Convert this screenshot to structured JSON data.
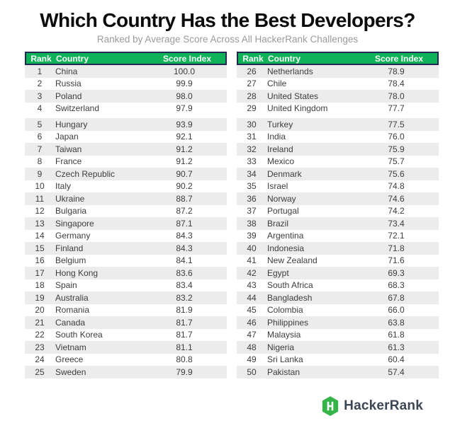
{
  "title": "Which Country Has the Best Developers?",
  "subtitle": "Ranked by Average Score Across All HackerRank Challenges",
  "footer": {
    "brand": "HackerRank",
    "logo_icon": "hackerrank-hexagon-h-icon"
  },
  "colors": {
    "header_green": "#10b259",
    "header_border_navy": "#222a52",
    "row_stripe_gray": "#ececec",
    "logo_green": "#35b448",
    "wordmark_slate": "#3d4654",
    "subtitle_gray": "#9b9b9b",
    "title_black": "#0c0c0c"
  },
  "chart_data": {
    "type": "table",
    "title": "Which Country Has the Best Developers?",
    "subtitle": "Ranked by Average Score Across All HackerRank Challenges",
    "columns": [
      "Rank",
      "Country",
      "Score Index"
    ],
    "layout": "two side-by-side panels, ranks 1-25 left and 26-50 right, small gap after 4th row of each panel",
    "rows": [
      [
        1,
        "China",
        "100.0"
      ],
      [
        2,
        "Russia",
        "99.9"
      ],
      [
        3,
        "Poland",
        "98.0"
      ],
      [
        4,
        "Switzerland",
        "97.9"
      ],
      [
        5,
        "Hungary",
        "93.9"
      ],
      [
        6,
        "Japan",
        "92.1"
      ],
      [
        7,
        "Taiwan",
        "91.2"
      ],
      [
        8,
        "France",
        "91.2"
      ],
      [
        9,
        "Czech Republic",
        "90.7"
      ],
      [
        10,
        "Italy",
        "90.2"
      ],
      [
        11,
        "Ukraine",
        "88.7"
      ],
      [
        12,
        "Bulgaria",
        "87.2"
      ],
      [
        13,
        "Singapore",
        "87.1"
      ],
      [
        14,
        "Germany",
        "84.3"
      ],
      [
        15,
        "Finland",
        "84.3"
      ],
      [
        16,
        "Belgium",
        "84.1"
      ],
      [
        17,
        "Hong Kong",
        "83.6"
      ],
      [
        18,
        "Spain",
        "83.4"
      ],
      [
        19,
        "Australia",
        "83.2"
      ],
      [
        20,
        "Romania",
        "81.9"
      ],
      [
        21,
        "Canada",
        "81.7"
      ],
      [
        22,
        "South Korea",
        "81.7"
      ],
      [
        23,
        "Vietnam",
        "81.1"
      ],
      [
        24,
        "Greece",
        "80.8"
      ],
      [
        25,
        "Sweden",
        "79.9"
      ],
      [
        26,
        "Netherlands",
        "78.9"
      ],
      [
        27,
        "Chile",
        "78.4"
      ],
      [
        28,
        "United States",
        "78.0"
      ],
      [
        29,
        "United Kingdom",
        "77.7"
      ],
      [
        30,
        "Turkey",
        "77.5"
      ],
      [
        31,
        "India",
        "76.0"
      ],
      [
        32,
        "Ireland",
        "75.9"
      ],
      [
        33,
        "Mexico",
        "75.7"
      ],
      [
        34,
        "Denmark",
        "75.6"
      ],
      [
        35,
        "Israel",
        "74.8"
      ],
      [
        36,
        "Norway",
        "74.6"
      ],
      [
        37,
        "Portugal",
        "74.2"
      ],
      [
        38,
        "Brazil",
        "73.4"
      ],
      [
        39,
        "Argentina",
        "72.1"
      ],
      [
        40,
        "Indonesia",
        "71.8"
      ],
      [
        41,
        "New Zealand",
        "71.6"
      ],
      [
        42,
        "Egypt",
        "69.3"
      ],
      [
        43,
        "South Africa",
        "68.3"
      ],
      [
        44,
        "Bangladesh",
        "67.8"
      ],
      [
        45,
        "Colombia",
        "66.0"
      ],
      [
        46,
        "Philippines",
        "63.8"
      ],
      [
        47,
        "Malaysia",
        "61.8"
      ],
      [
        48,
        "Nigeria",
        "61.3"
      ],
      [
        49,
        "Sri Lanka",
        "60.4"
      ],
      [
        50,
        "Pakistan",
        "57.4"
      ]
    ]
  }
}
